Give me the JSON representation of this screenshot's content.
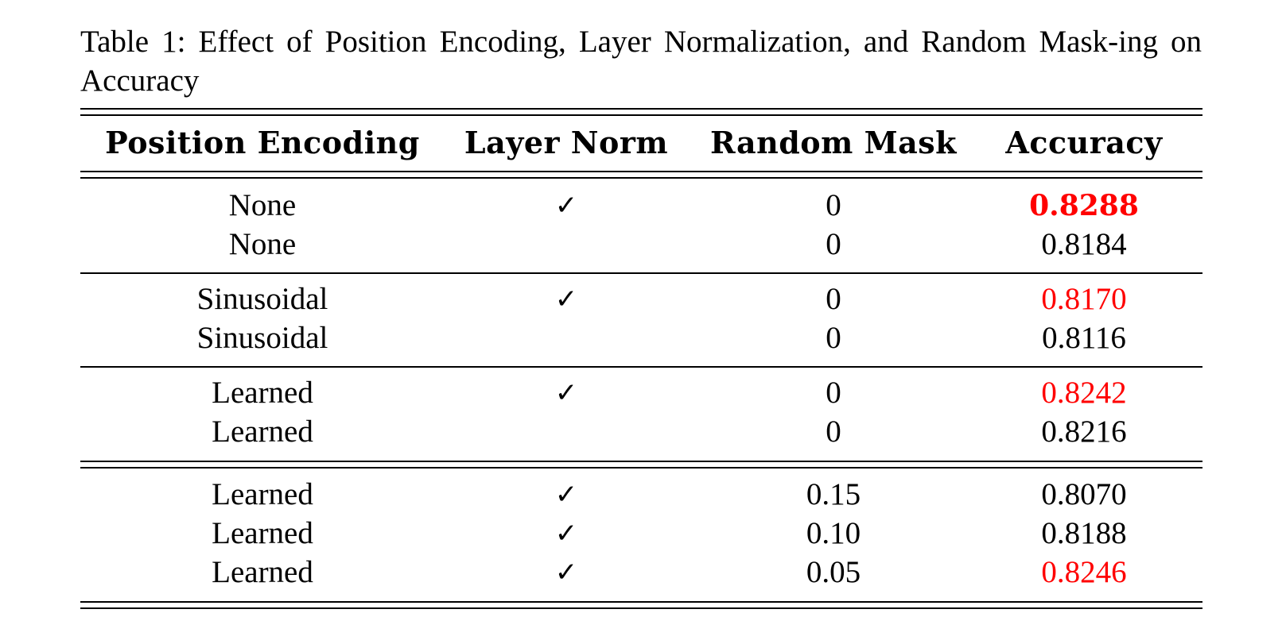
{
  "caption": "Table 1: Effect of Position Encoding, Layer Normalization, and Random Mask-ing on Accuracy",
  "table": {
    "headers": [
      "Position Encoding",
      "Layer Norm",
      "Random Mask",
      "Accuracy"
    ],
    "check_glyph": "✓",
    "rows": [
      {
        "position_encoding": "None",
        "layer_norm": "✓",
        "random_mask": "0",
        "accuracy": "0.8288"
      },
      {
        "position_encoding": "None",
        "layer_norm": "",
        "random_mask": "0",
        "accuracy": "0.8184"
      },
      {
        "position_encoding": "Sinusoidal",
        "layer_norm": "✓",
        "random_mask": "0",
        "accuracy": "0.8170"
      },
      {
        "position_encoding": "Sinusoidal",
        "layer_norm": "",
        "random_mask": "0",
        "accuracy": "0.8116"
      },
      {
        "position_encoding": "Learned",
        "layer_norm": "✓",
        "random_mask": "0",
        "accuracy": "0.8242"
      },
      {
        "position_encoding": "Learned",
        "layer_norm": "",
        "random_mask": "0",
        "accuracy": "0.8216"
      },
      {
        "position_encoding": "Learned",
        "layer_norm": "✓",
        "random_mask": "0.15",
        "accuracy": "0.8070"
      },
      {
        "position_encoding": "Learned",
        "layer_norm": "✓",
        "random_mask": "0.10",
        "accuracy": "0.8188"
      },
      {
        "position_encoding": "Learned",
        "layer_norm": "✓",
        "random_mask": "0.05",
        "accuracy": "0.8246"
      }
    ]
  },
  "colors": {
    "highlight": "#ff0000",
    "text": "#000000"
  }
}
